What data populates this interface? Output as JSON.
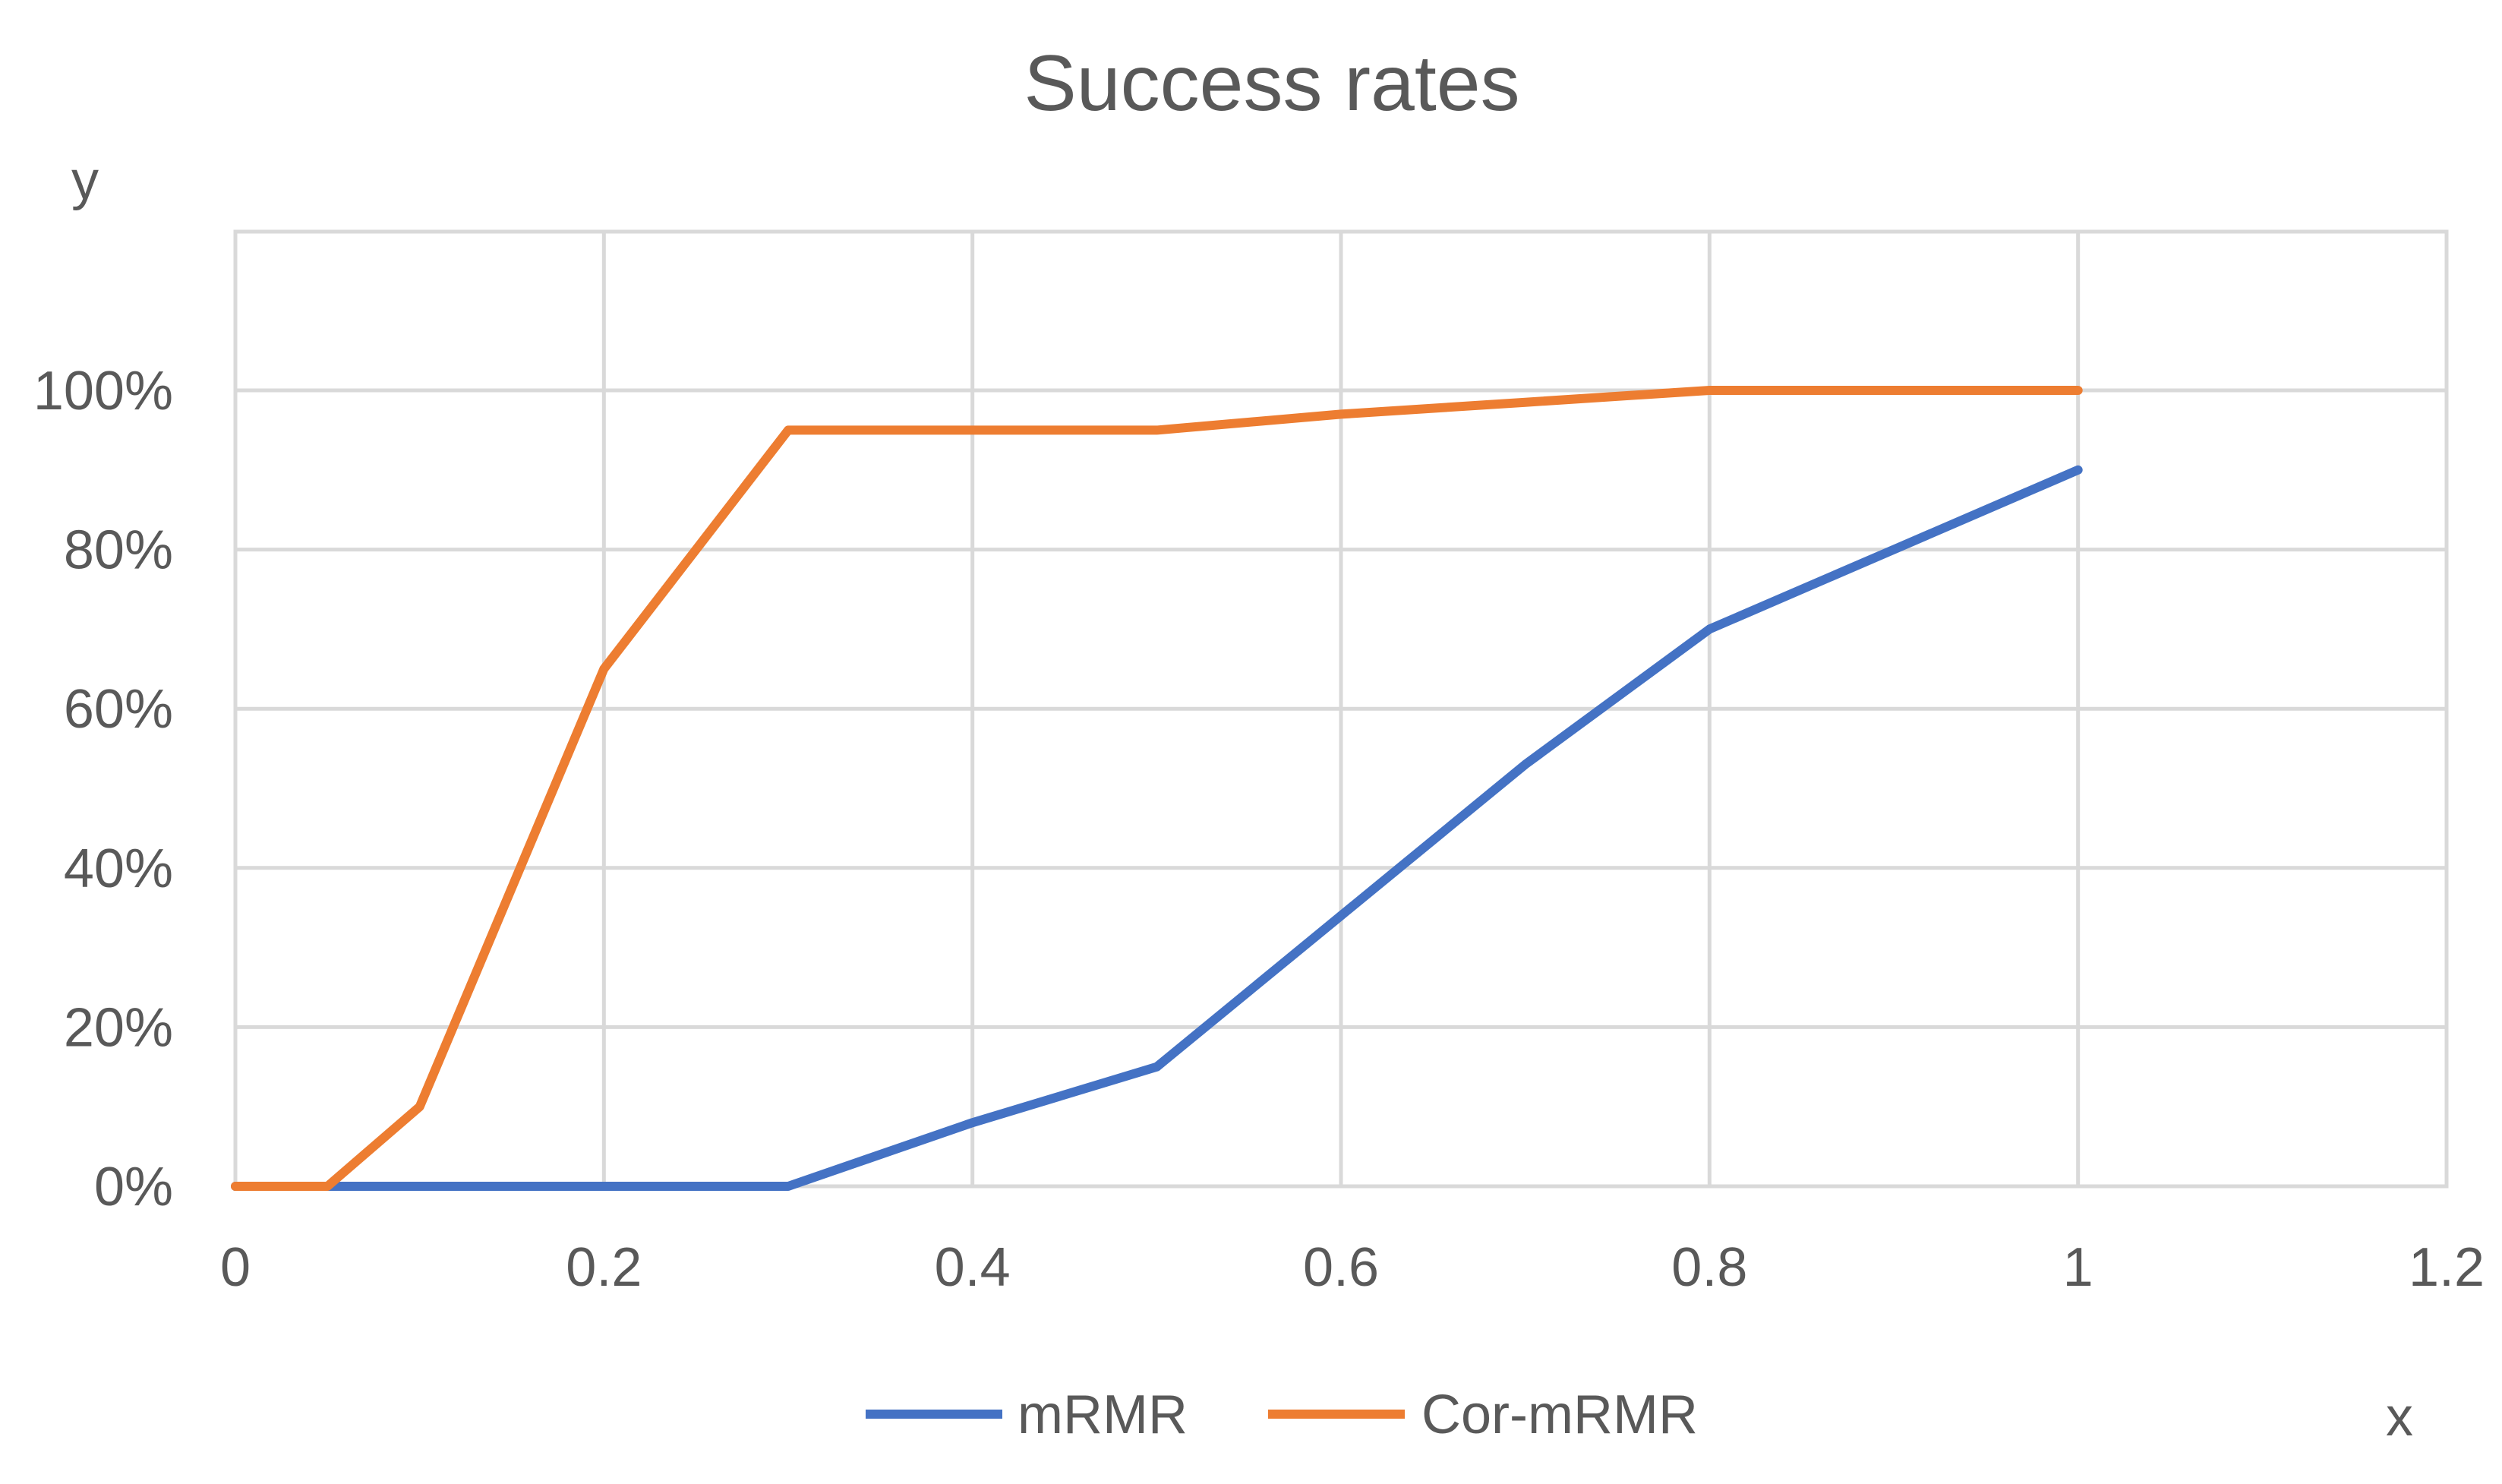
{
  "chart_data": {
    "type": "line",
    "title": "Success rates",
    "xlabel": "x",
    "ylabel": "y",
    "xlim": [
      0,
      1.2
    ],
    "ylim": [
      0,
      1.2
    ],
    "x_ticks": [
      0,
      0.2,
      0.4,
      0.6,
      0.8,
      1,
      1.2
    ],
    "x_tick_labels": [
      "0",
      "0.2",
      "0.4",
      "0.6",
      "0.8",
      "1",
      "1.2"
    ],
    "y_ticks": [
      0,
      0.2,
      0.4,
      0.6,
      0.8,
      1.0
    ],
    "y_tick_labels": [
      "0%",
      "20%",
      "40%",
      "60%",
      "80%",
      "100%"
    ],
    "grid": true,
    "legend_position": "bottom",
    "series": [
      {
        "name": "mRMR",
        "color": "#4472c4",
        "x": [
          0,
          0.05,
          0.1,
          0.2,
          0.3,
          0.4,
          0.5,
          0.6,
          0.7,
          0.8,
          0.9,
          1.0
        ],
        "y": [
          0,
          0,
          0,
          0,
          0,
          0.08,
          0.15,
          0.34,
          0.53,
          0.7,
          0.8,
          0.9
        ]
      },
      {
        "name": "Cor-mRMR",
        "color": "#ed7d31",
        "x": [
          0,
          0.05,
          0.1,
          0.2,
          0.3,
          0.4,
          0.5,
          0.6,
          0.7,
          0.8,
          0.9,
          1.0
        ],
        "y": [
          0,
          0,
          0.1,
          0.65,
          0.95,
          0.95,
          0.95,
          0.97,
          0.985,
          1.0,
          1.0,
          1.0
        ]
      }
    ]
  }
}
